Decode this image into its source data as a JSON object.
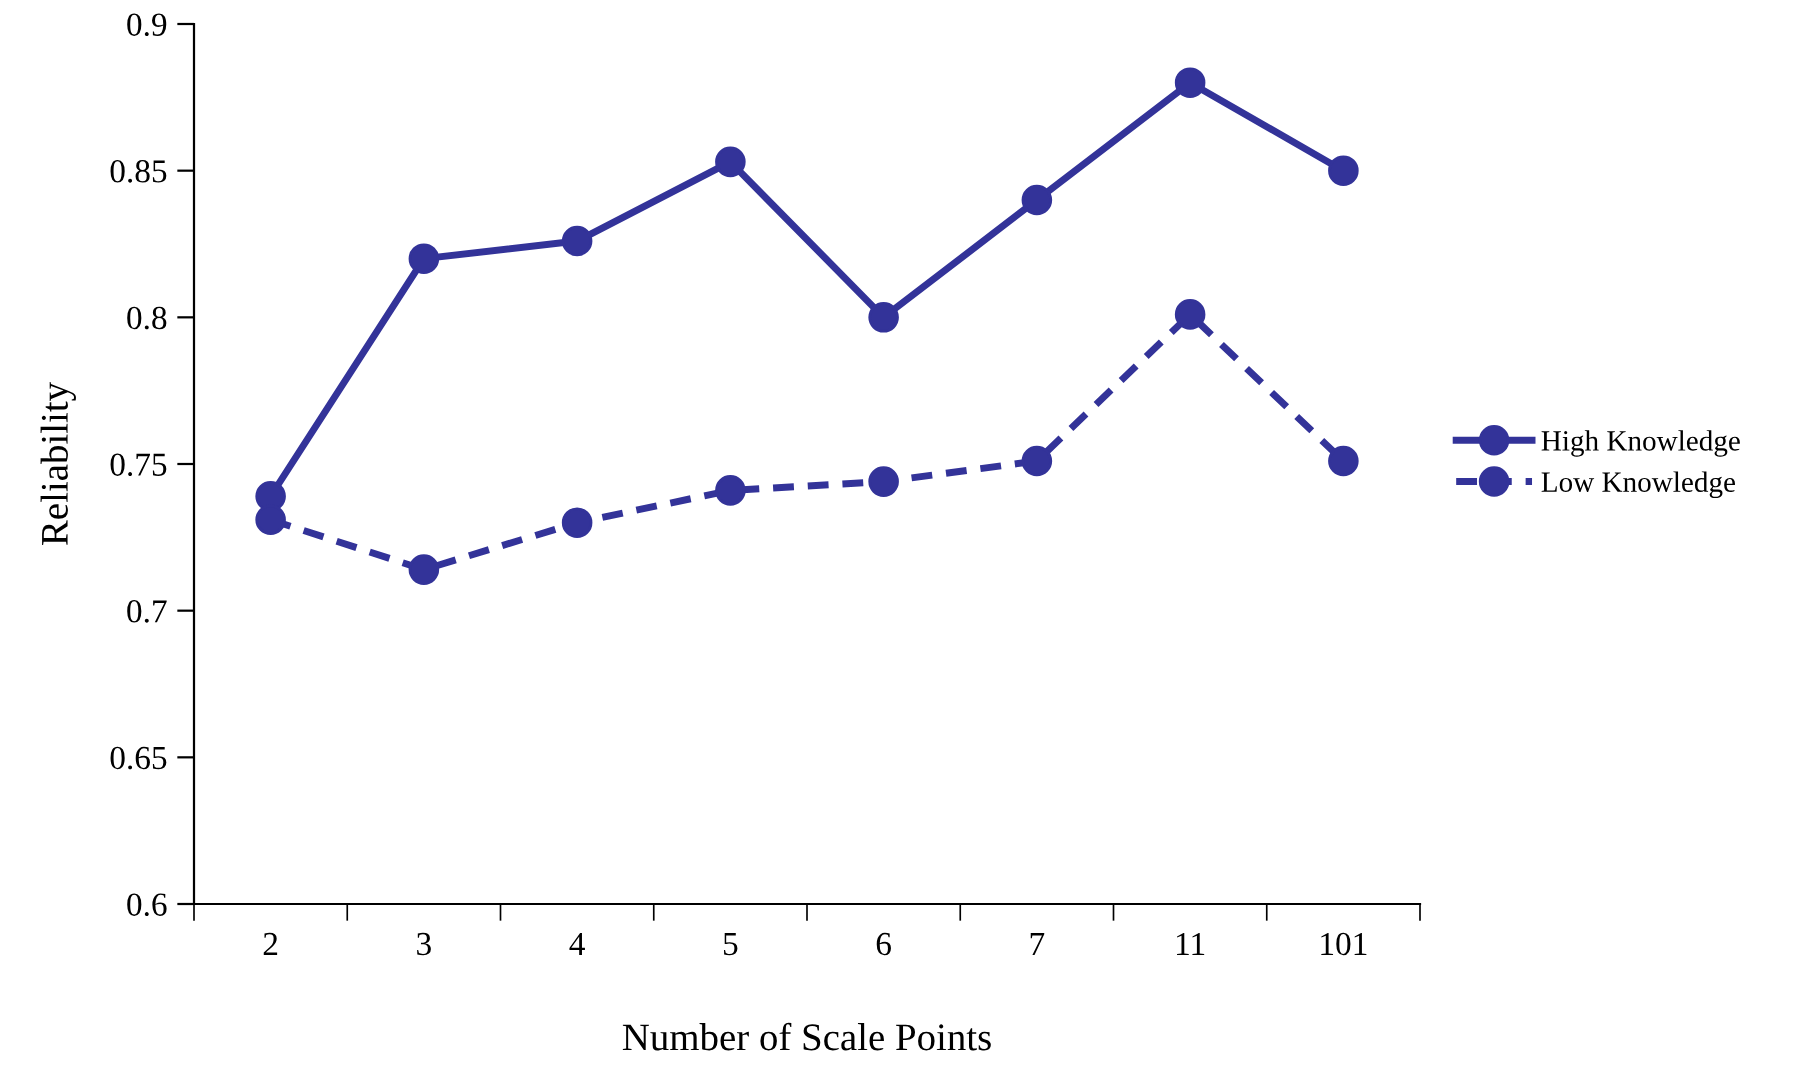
{
  "chart_data": {
    "type": "line",
    "xlabel": "Number of Scale Points",
    "ylabel": "Reliability",
    "categories": [
      "2",
      "3",
      "4",
      "5",
      "6",
      "7",
      "11",
      "101"
    ],
    "series": [
      {
        "name": "High Knowledge",
        "color": "#333399",
        "line_style": "solid",
        "values": [
          0.739,
          0.82,
          0.826,
          0.853,
          0.8,
          0.84,
          0.88,
          0.85
        ]
      },
      {
        "name": "Low Knowledge",
        "color": "#333399",
        "line_style": "dashed",
        "values": [
          0.731,
          0.714,
          0.73,
          0.741,
          0.744,
          0.751,
          0.801,
          0.751
        ]
      }
    ],
    "ylim": [
      0.6,
      0.9
    ],
    "yticks": [
      {
        "value": 0.6,
        "label": "0.6"
      },
      0.65,
      {
        "value": 0.7,
        "label": "0.7"
      },
      0.75,
      {
        "value": 0.8,
        "label": "0.8"
      },
      0.85,
      {
        "value": 0.9,
        "label": "0.9"
      }
    ],
    "marker": "circle",
    "grid": false,
    "legend": "right"
  }
}
